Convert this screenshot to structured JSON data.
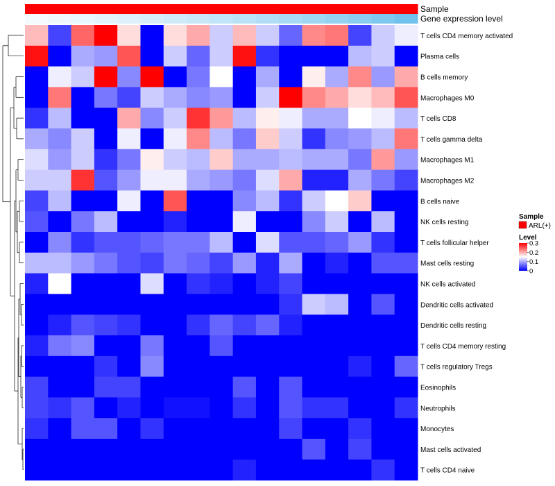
{
  "chart_data": {
    "type": "heatmap",
    "annotations": [
      {
        "label": "Sample",
        "colors": [
          "#ff0000"
        ]
      },
      {
        "label": "Gene expression level",
        "colors": [
          "#f4fbfe",
          "#eef8fd",
          "#e8f6fd",
          "#e2f3fc",
          "#dcf1fb",
          "#d5eefa",
          "#cfebf9",
          "#c8e8f8",
          "#c1e5f8",
          "#b9e2f7",
          "#b1def6",
          "#a8daf5",
          "#9fd6f3",
          "#95d2f2",
          "#8acdf1",
          "#7ec8ef",
          "#70c2ed",
          "#5fbbeb"
        ]
      }
    ],
    "rows": [
      "T cells CD4 memory activated",
      "Plasma cells",
      "B cells memory",
      "Macrophages M0",
      "T cells CD8",
      "T cells gamma delta",
      "Macrophages M1",
      "Macrophages M2",
      "B cells naive",
      "NK cells resting",
      "T cells follicular helper",
      "Mast cells resting",
      "NK cells activated",
      "Dendritic cells activated",
      "Dendritic cells resting",
      "T cells CD4 memory resting",
      "T cells regulatory  Tregs",
      "Eosinophils",
      "Neutrophils",
      "Monocytes",
      "Mast cells activated",
      "T cells CD4 naive"
    ],
    "values": [
      [
        0.19,
        0.04,
        0.24,
        0.3,
        0.17,
        0.0,
        0.17,
        0.2,
        0.12,
        0.19,
        0.12,
        0.06,
        0.22,
        0.23,
        0.04,
        0.12,
        0.14
      ],
      [
        0.29,
        0.0,
        0.1,
        0.09,
        0.25,
        0.0,
        0.12,
        0.06,
        0.12,
        0.29,
        0.03,
        0.0,
        0.0,
        0.0,
        0.11,
        0.12,
        0.0
      ],
      [
        0.0,
        0.14,
        0.12,
        0.3,
        0.08,
        0.3,
        0.0,
        0.07,
        0.15,
        0.0,
        0.1,
        0.0,
        0.16,
        0.1,
        0.22,
        0.09,
        0.2
      ],
      [
        0.0,
        0.23,
        0.0,
        0.07,
        0.04,
        0.12,
        0.1,
        0.08,
        0.09,
        0.0,
        0.12,
        0.3,
        0.22,
        0.2,
        0.17,
        0.19,
        0.25
      ],
      [
        0.03,
        0.11,
        0.0,
        0.0,
        0.2,
        0.08,
        0.12,
        0.27,
        0.21,
        0.11,
        0.16,
        0.14,
        0.1,
        0.1,
        0.15,
        0.14,
        0.11
      ],
      [
        0.1,
        0.08,
        0.12,
        0.0,
        0.14,
        0.0,
        0.14,
        0.22,
        0.11,
        0.07,
        0.18,
        0.12,
        0.03,
        0.08,
        0.09,
        0.11,
        0.23
      ],
      [
        0.13,
        0.09,
        0.12,
        0.03,
        0.07,
        0.16,
        0.12,
        0.11,
        0.18,
        0.1,
        0.1,
        0.11,
        0.1,
        0.1,
        0.07,
        0.21,
        0.09
      ],
      [
        0.12,
        0.12,
        0.27,
        0.05,
        0.09,
        0.14,
        0.14,
        0.1,
        0.09,
        0.07,
        0.13,
        0.2,
        0.02,
        0.02,
        0.1,
        0.07,
        0.04
      ],
      [
        0.04,
        0.11,
        0.0,
        0.0,
        0.14,
        0.0,
        0.25,
        0.0,
        0.0,
        0.08,
        0.11,
        0.03,
        0.12,
        0.15,
        0.18,
        0.0,
        0.0
      ],
      [
        0.05,
        0.0,
        0.07,
        0.11,
        0.0,
        0.0,
        0.02,
        0.0,
        0.0,
        0.14,
        0.0,
        0.0,
        0.08,
        0.12,
        0.0,
        0.11,
        0.0
      ],
      [
        0.0,
        0.08,
        0.03,
        0.05,
        0.05,
        0.06,
        0.07,
        0.07,
        0.11,
        0.0,
        0.13,
        0.05,
        0.05,
        0.06,
        0.09,
        0.03,
        0.0
      ],
      [
        0.11,
        0.11,
        0.09,
        0.07,
        0.05,
        0.04,
        0.07,
        0.06,
        0.04,
        0.09,
        0.02,
        0.1,
        0.0,
        0.02,
        0.0,
        0.05,
        0.05
      ],
      [
        0.02,
        0.15,
        0.0,
        0.0,
        0.0,
        0.13,
        0.0,
        0.03,
        0.02,
        0.0,
        0.02,
        0.04,
        0.0,
        0.0,
        0.0,
        0.0,
        0.0
      ],
      [
        0.0,
        0.0,
        0.0,
        0.0,
        0.0,
        0.0,
        0.0,
        0.0,
        0.0,
        0.0,
        0.0,
        0.03,
        0.12,
        0.11,
        0.0,
        0.05,
        0.0
      ],
      [
        0.0,
        0.02,
        0.05,
        0.04,
        0.03,
        0.0,
        0.0,
        0.03,
        0.06,
        0.04,
        0.06,
        0.02,
        0.0,
        0.0,
        0.0,
        0.0,
        0.0
      ],
      [
        0.02,
        0.07,
        0.08,
        0.0,
        0.0,
        0.07,
        0.0,
        0.0,
        0.05,
        0.0,
        0.0,
        0.0,
        0.0,
        0.0,
        0.0,
        0.0,
        0.0
      ],
      [
        0.0,
        0.0,
        0.0,
        0.03,
        0.0,
        0.08,
        0.0,
        0.0,
        0.0,
        0.0,
        0.0,
        0.0,
        0.0,
        0.0,
        0.02,
        0.0,
        0.06
      ],
      [
        0.04,
        0.0,
        0.0,
        0.04,
        0.04,
        0.0,
        0.0,
        0.0,
        0.0,
        0.05,
        0.0,
        0.05,
        0.0,
        0.0,
        0.0,
        0.0,
        0.0
      ],
      [
        0.04,
        0.03,
        0.05,
        0.0,
        0.02,
        0.0,
        0.01,
        0.01,
        0.0,
        0.03,
        0.0,
        0.05,
        0.03,
        0.03,
        0.0,
        0.0,
        0.03
      ],
      [
        0.03,
        0.0,
        0.05,
        0.05,
        0.0,
        0.03,
        0.0,
        0.0,
        0.0,
        0.0,
        0.0,
        0.04,
        0.0,
        0.0,
        0.03,
        0.0,
        0.0
      ],
      [
        0.0,
        0.0,
        0.0,
        0.0,
        0.0,
        0.0,
        0.0,
        0.0,
        0.0,
        0.0,
        0.0,
        0.0,
        0.05,
        0.0,
        0.04,
        0.0,
        0.0
      ],
      [
        0.0,
        0.0,
        0.0,
        0.0,
        0.0,
        0.0,
        0.0,
        0.0,
        0.0,
        0.02,
        0.0,
        0.0,
        0.0,
        0.0,
        0.0,
        0.03,
        0.0
      ]
    ],
    "color_scale": {
      "min": 0,
      "mid": 0.15,
      "max": 0.3,
      "low": "#0000ff",
      "middle": "#ffffff",
      "high": "#ff0000"
    },
    "legend": {
      "sample_title": "Sample",
      "sample_label": "ARL(+)",
      "sample_color": "#ff0000",
      "level_title": "Level",
      "ticks": [
        0.3,
        0.2,
        0.1,
        0
      ],
      "tick_labels": [
        "0.3",
        "0.2",
        "0.1",
        "0"
      ],
      "placement": "right"
    },
    "dendrogram": {
      "side": "left",
      "leaves": 22
    }
  }
}
